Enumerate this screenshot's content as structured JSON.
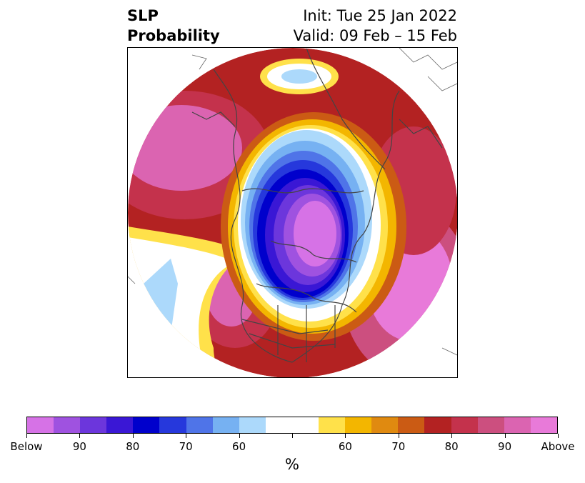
{
  "header": {
    "title_line1": "SLP",
    "title_line2": "Probability",
    "init": "Init: Tue 25 Jan 2022",
    "valid": "Valid: 09 Feb – 15 Feb"
  },
  "colorbar": {
    "colors": [
      "#d672e6",
      "#9f52e0",
      "#6c36dc",
      "#3a17d5",
      "#0000cc",
      "#2638dc",
      "#4f74e8",
      "#76b1f2",
      "#acd9fb",
      "#ffffff",
      "#ffffff",
      "#ffe14a",
      "#f3b600",
      "#e08a10",
      "#cb5b14",
      "#b32222",
      "#c4324c",
      "#cc4f7f",
      "#db64b1",
      "#e87ad9"
    ],
    "tick_labels": [
      "Below",
      "90",
      "80",
      "70",
      "60",
      "60",
      "70",
      "80",
      "90",
      "Above"
    ],
    "unit": "%"
  }
}
